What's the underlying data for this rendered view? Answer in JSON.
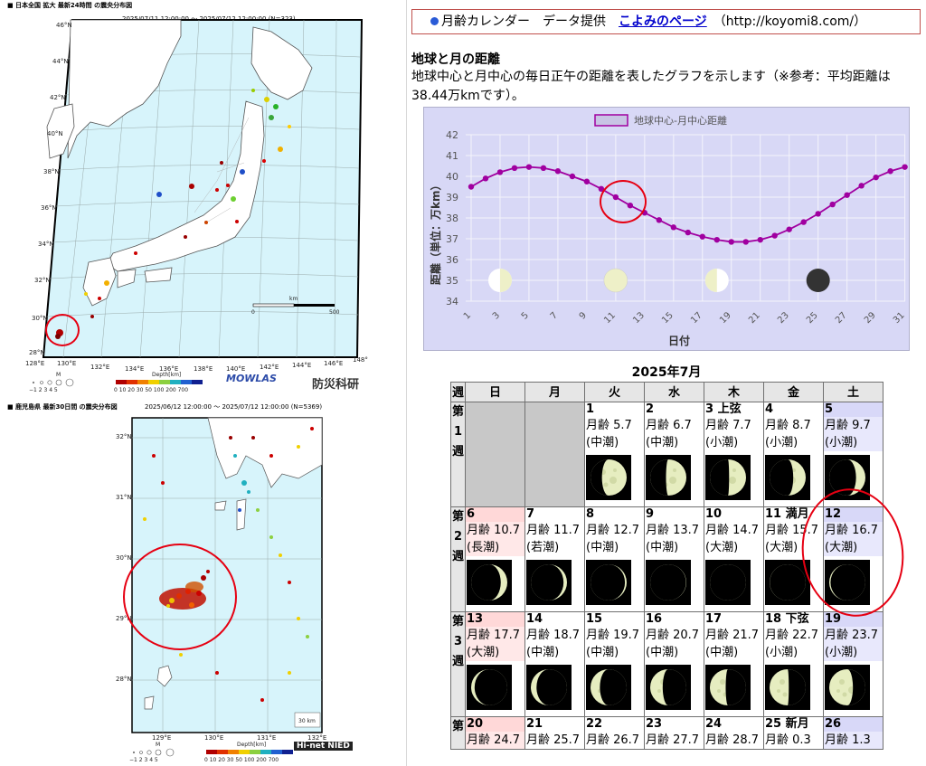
{
  "map_top": {
    "caption": "■ 日本全国 拡大 最新24時間 の震央分布図",
    "period": "2025/07/11 12:00:00 ～ 2025/07/12 12:00:00 (N=323)",
    "lat_labels": [
      "46°N",
      "44°N",
      "42°N",
      "40°N",
      "38°N",
      "36°N",
      "34°N",
      "32°N",
      "30°N",
      "28°N"
    ],
    "lon_labels": [
      "128°E",
      "130°E",
      "132°E",
      "134°E",
      "136°E",
      "138°E",
      "140°E",
      "142°E",
      "144°E",
      "146°E",
      "148°"
    ],
    "scale_unit": "km",
    "scale_zero": "0",
    "scale_max": "500",
    "magnitude_label": "M",
    "magnitude_values": "−1  2  3  4  5",
    "depth_label": "Depth[km]",
    "depth_ticks": "0  10  20  30  50  100 200 700",
    "logo_mowlas": "MOWLAS",
    "logo_nied": "防災科研"
  },
  "map_bottom": {
    "caption": "■ 鹿児島県 最新30日間 の震央分布図",
    "period": "2025/06/12 12:00:00 ～ 2025/07/12 12:00:00 (N=5369)",
    "lat_labels": [
      "32°N",
      "31°N",
      "30°N",
      "29°N",
      "28°N"
    ],
    "lon_labels": [
      "129°E",
      "130°E",
      "131°E",
      "132°E"
    ],
    "scale_label": "30 km",
    "magnitude_label": "M",
    "magnitude_values": "−1  2  3  4  5",
    "depth_label": "Depth[km]",
    "depth_ticks": "0  10  20  30  50  100 200 700",
    "logo": "Hi-net NIED"
  },
  "credit": {
    "prefix": "月齢カレンダー　データ提供",
    "link_text": "こよみのページ",
    "url_text": "（http://koyomi8.com/）"
  },
  "distance_section": {
    "title": "地球と月の距離",
    "description": "地球中心と月中心の毎日正午の距離を表したグラフを示します（※参考：平均距離は38.44万kmです）。"
  },
  "chart_data": {
    "type": "line",
    "legend": "地球中心-月中心距離",
    "xlabel": "日付",
    "ylabel": "距離（単位：万km）",
    "ylim": [
      34,
      42
    ],
    "yticks": [
      34,
      35,
      36,
      37,
      38,
      39,
      40,
      41,
      42
    ],
    "xticks": [
      1,
      3,
      5,
      7,
      9,
      11,
      13,
      15,
      17,
      19,
      21,
      23,
      25,
      27,
      29,
      31
    ],
    "x": [
      1,
      2,
      3,
      4,
      5,
      6,
      7,
      8,
      9,
      10,
      11,
      12,
      13,
      14,
      15,
      16,
      17,
      18,
      19,
      20,
      21,
      22,
      23,
      24,
      25,
      26,
      27,
      28,
      29,
      30,
      31
    ],
    "series": [
      {
        "values": [
          39.5,
          39.9,
          40.2,
          40.4,
          40.45,
          40.4,
          40.25,
          40.0,
          39.75,
          39.4,
          39.0,
          38.6,
          38.25,
          37.9,
          37.55,
          37.3,
          37.1,
          36.95,
          36.85,
          36.85,
          36.95,
          37.15,
          37.45,
          37.8,
          38.2,
          38.65,
          39.1,
          39.55,
          39.95,
          40.25,
          40.45
        ],
        "color": "#a000a0"
      }
    ],
    "moon_phase_markers": [
      {
        "day": 3,
        "phase": "first_quarter"
      },
      {
        "day": 11,
        "phase": "full"
      },
      {
        "day": 18,
        "phase": "last_quarter"
      },
      {
        "day": 25,
        "phase": "new"
      }
    ]
  },
  "calendar": {
    "title": "2025年7月",
    "headers": [
      "週",
      "日",
      "月",
      "火",
      "水",
      "木",
      "金",
      "土"
    ],
    "weeks": [
      {
        "label": "第\n1\n週",
        "days": [
          null,
          null,
          {
            "num": "1",
            "event": "",
            "age": "月齢 5.7",
            "tide": "(中潮)",
            "phase": 0.19
          },
          {
            "num": "2",
            "event": "",
            "age": "月齢 6.7",
            "tide": "(中潮)",
            "phase": 0.23
          },
          {
            "num": "3",
            "event": "上弦",
            "age": "月齢 7.7",
            "tide": "(小潮)",
            "phase": 0.26
          },
          {
            "num": "4",
            "event": "",
            "age": "月齢 8.7",
            "tide": "(小潮)",
            "phase": 0.3
          },
          {
            "num": "5",
            "event": "",
            "age": "月齢 9.7",
            "tide": "(小潮)",
            "phase": 0.33
          }
        ]
      },
      {
        "label": "第\n2\n週",
        "days": [
          {
            "num": "6",
            "event": "",
            "age": "月齢 10.7",
            "tide": "(長潮)",
            "phase": 0.36
          },
          {
            "num": "7",
            "event": "",
            "age": "月齢 11.7",
            "tide": "(若潮)",
            "phase": 0.4
          },
          {
            "num": "8",
            "event": "",
            "age": "月齢 12.7",
            "tide": "(中潮)",
            "phase": 0.43
          },
          {
            "num": "9",
            "event": "",
            "age": "月齢 13.7",
            "tide": "(中潮)",
            "phase": 0.47
          },
          {
            "num": "10",
            "event": "",
            "age": "月齢 14.7",
            "tide": "(大潮)",
            "phase": 0.5
          },
          {
            "num": "11",
            "event": "満月",
            "age": "月齢 15.7",
            "tide": "(大潮)",
            "phase": 0.52
          },
          {
            "num": "12",
            "event": "",
            "age": "月齢 16.7",
            "tide": "(大潮)",
            "phase": 0.56
          }
        ]
      },
      {
        "label": "第\n3\n週",
        "days": [
          {
            "num": "13",
            "event": "",
            "age": "月齢 17.7",
            "tide": "(大潮)",
            "phase": 0.6
          },
          {
            "num": "14",
            "event": "",
            "age": "月齢 18.7",
            "tide": "(中潮)",
            "phase": 0.63
          },
          {
            "num": "15",
            "event": "",
            "age": "月齢 19.7",
            "tide": "(中潮)",
            "phase": 0.67
          },
          {
            "num": "16",
            "event": "",
            "age": "月齢 20.7",
            "tide": "(中潮)",
            "phase": 0.7
          },
          {
            "num": "17",
            "event": "",
            "age": "月齢 21.7",
            "tide": "(中潮)",
            "phase": 0.73
          },
          {
            "num": "18",
            "event": "下弦",
            "age": "月齢 22.7",
            "tide": "(小潮)",
            "phase": 0.76
          },
          {
            "num": "19",
            "event": "",
            "age": "月齢 23.7",
            "tide": "(小潮)",
            "phase": 0.8
          }
        ]
      },
      {
        "label": "第",
        "days": [
          {
            "num": "20",
            "event": "",
            "age": "月齢 24.7",
            "tide": "",
            "phase": null
          },
          {
            "num": "21",
            "event": "",
            "age": "月齢 25.7",
            "tide": "",
            "phase": null
          },
          {
            "num": "22",
            "event": "",
            "age": "月齢 26.7",
            "tide": "",
            "phase": null
          },
          {
            "num": "23",
            "event": "",
            "age": "月齢 27.7",
            "tide": "",
            "phase": null
          },
          {
            "num": "24",
            "event": "",
            "age": "月齢 28.7",
            "tide": "",
            "phase": null
          },
          {
            "num": "25",
            "event": "新月",
            "age": "月齢 0.3",
            "tide": "",
            "phase": null
          },
          {
            "num": "26",
            "event": "",
            "age": "月齢 1.3",
            "tide": "",
            "phase": null
          }
        ]
      }
    ]
  }
}
